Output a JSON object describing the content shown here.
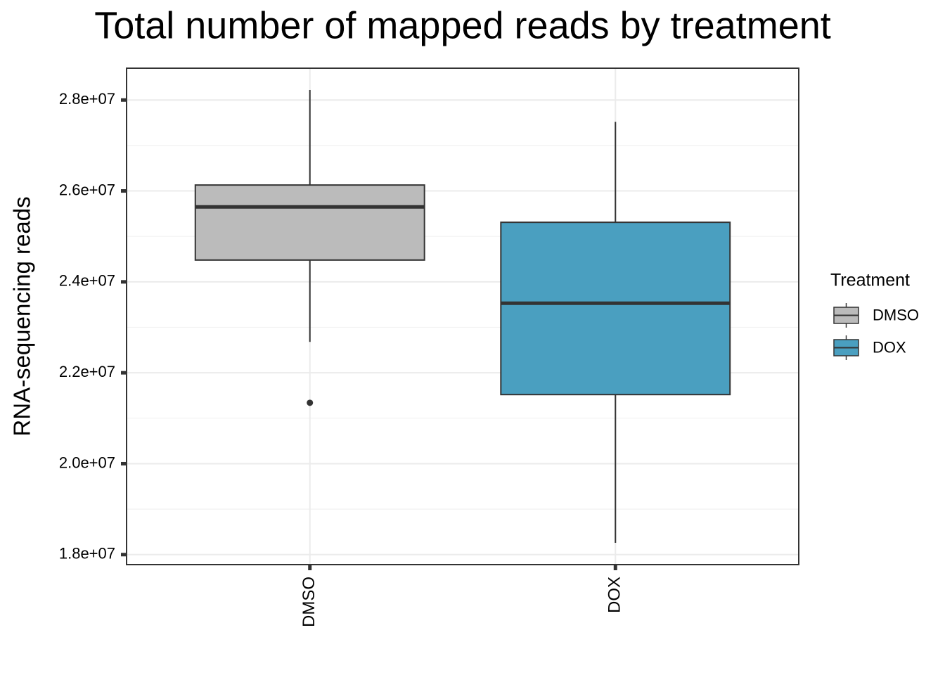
{
  "chart_data": {
    "type": "box",
    "title": "Total number of mapped reads by treatment",
    "y_label": "RNA-sequencing reads",
    "legend_title": "Treatment",
    "legend": "right",
    "grid": true,
    "categories": [
      "DMSO",
      "DOX"
    ],
    "series": [
      {
        "name": "DMSO",
        "color": "#bbbbbb",
        "whisker_low": 22680000,
        "q1": 24480000,
        "median": 25650000,
        "q3": 26130000,
        "whisker_high": 28220000,
        "outliers": [
          21340000
        ]
      },
      {
        "name": "DOX",
        "color": "#4a9fc0",
        "whisker_low": 18260000,
        "q1": 21520000,
        "median": 23530000,
        "q3": 25310000,
        "whisker_high": 27520000,
        "outliers": []
      }
    ],
    "ylim": [
      17780000,
      28700000
    ],
    "yticks": [
      {
        "value": 18000000,
        "label": "1.8e+07"
      },
      {
        "value": 20000000,
        "label": "2.0e+07"
      },
      {
        "value": 22000000,
        "label": "2.2e+07"
      },
      {
        "value": 24000000,
        "label": "2.4e+07"
      },
      {
        "value": 26000000,
        "label": "2.6e+07"
      },
      {
        "value": 28000000,
        "label": "2.8e+07"
      }
    ],
    "minor_yticks": [
      19000000,
      21000000,
      23000000,
      25000000,
      27000000
    ]
  }
}
